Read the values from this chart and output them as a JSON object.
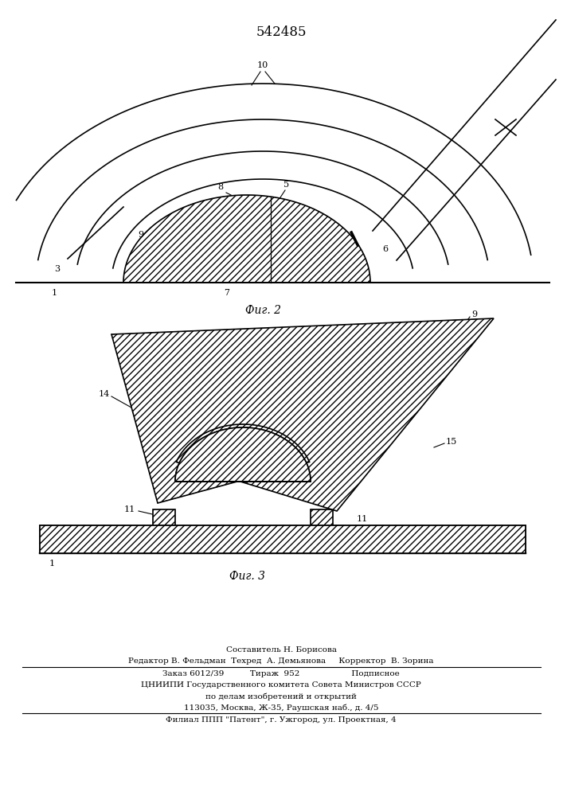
{
  "title_number": "542485",
  "fig2_label": "Фиг. 2",
  "fig3_label": "Фиг. 3",
  "footer_line1": "Составитель Н. Борисова",
  "footer_line2": "Редактор В. Фельдман  Техред  А. Демьянова     Корректор  В. Зорина",
  "footer_line3": "Заказ 6012/39          Тираж  952                    Подписное",
  "footer_line4": "ЦНИИПИ Государственного комитета Совета Министров СССР",
  "footer_line5": "по делам изобретений и открытий",
  "footer_line6": "113035, Москва, Ж-35, Раушская наб., д. 4/5",
  "footer_line7": "Филиал ППП \"Патент\", г. Ужгород, ул. Проектная, 4",
  "bg_color": "#ffffff",
  "line_color": "#000000"
}
